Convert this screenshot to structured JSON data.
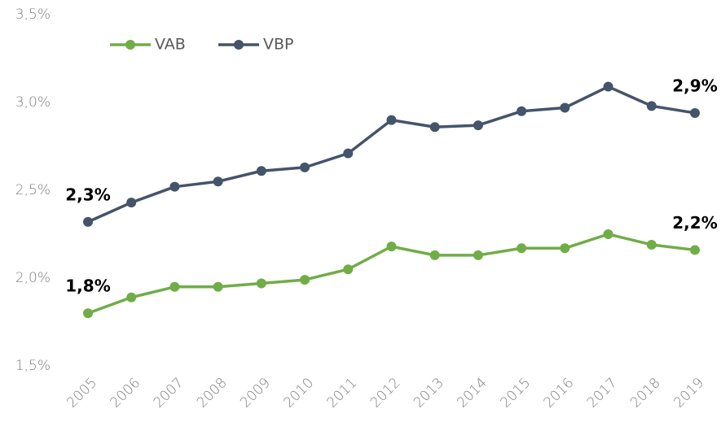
{
  "chart_data": {
    "type": "line",
    "categories": [
      "2005",
      "2006",
      "2007",
      "2008",
      "2009",
      "2010",
      "2011",
      "2012",
      "2013",
      "2014",
      "2015",
      "2016",
      "2017",
      "2018",
      "2019"
    ],
    "series": [
      {
        "name": "VAB",
        "color": "#70ad47",
        "values": [
          1.8,
          1.89,
          1.95,
          1.95,
          1.97,
          1.99,
          2.05,
          2.18,
          2.13,
          2.13,
          2.17,
          2.17,
          2.25,
          2.19,
          2.16
        ],
        "value_labels": [
          "1,8%",
          null,
          null,
          null,
          null,
          null,
          null,
          null,
          null,
          null,
          null,
          null,
          null,
          null,
          "2,2%"
        ]
      },
      {
        "name": "VBP",
        "color": "#44546a",
        "values": [
          2.32,
          2.43,
          2.52,
          2.55,
          2.61,
          2.63,
          2.71,
          2.9,
          2.86,
          2.87,
          2.95,
          2.97,
          3.09,
          2.98,
          2.94
        ],
        "value_labels": [
          "2,3%",
          null,
          null,
          null,
          null,
          null,
          null,
          null,
          null,
          null,
          null,
          null,
          null,
          null,
          "2,9%"
        ]
      }
    ],
    "ylim": [
      1.5,
      3.5
    ],
    "yticks": [
      {
        "value": 1.5,
        "label": "1,5%"
      },
      {
        "value": 2.0,
        "label": "2,0%"
      },
      {
        "value": 2.5,
        "label": "2,5%"
      },
      {
        "value": 3.0,
        "label": "3,0%"
      },
      {
        "value": 3.5,
        "label": "3,5%"
      }
    ],
    "grid": false,
    "legend": "top-left"
  }
}
